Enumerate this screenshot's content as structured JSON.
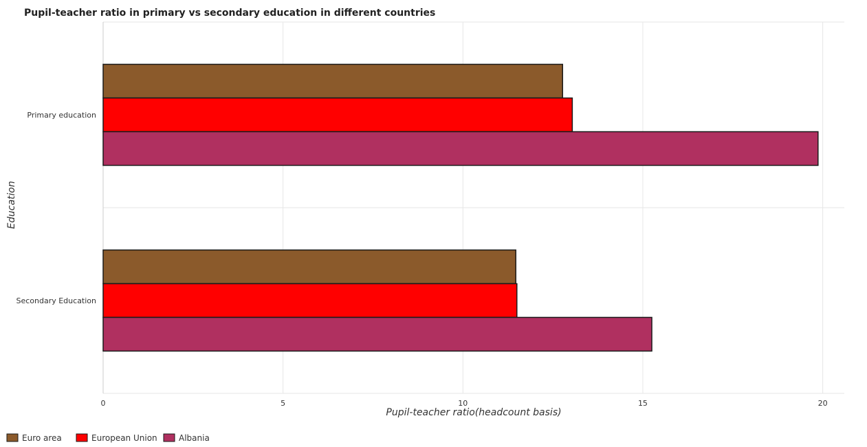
{
  "chart_data": {
    "type": "bar",
    "orientation": "horizontal",
    "title": "Pupil-teacher ratio in primary vs secondary education in different countries",
    "xlabel": "Pupil-teacher ratio(headcount basis)",
    "ylabel": "Education",
    "categories": [
      "Primary education",
      "Secondary Education"
    ],
    "xlim": [
      0,
      20.6
    ],
    "xticks": [
      0,
      5,
      10,
      15,
      20
    ],
    "grid": true,
    "legend_position": "bottom-left",
    "series": [
      {
        "name": "Euro area",
        "color": "#8b5a2b",
        "values": [
          12.77,
          11.47
        ]
      },
      {
        "name": "European Union",
        "color": "#ff0000",
        "values": [
          13.04,
          11.5
        ]
      },
      {
        "name": "Albania",
        "color": "#b03060",
        "values": [
          19.87,
          15.25
        ]
      }
    ]
  }
}
